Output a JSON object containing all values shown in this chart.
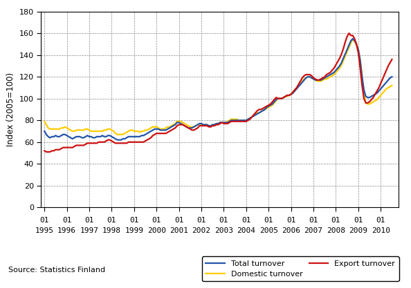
{
  "title": "",
  "ylabel": "Index (2005=100)",
  "source_text": "Source: Statistics Finland",
  "ylim": [
    0,
    180
  ],
  "yticks": [
    0,
    20,
    40,
    60,
    80,
    100,
    120,
    140,
    160,
    180
  ],
  "start_year": 1995,
  "start_month": 1,
  "end_year": 2010,
  "end_month": 7,
  "total_color": "#2255aa",
  "domestic_color": "#ffcc00",
  "export_color": "#cc1111",
  "line_width": 1.6,
  "legend_labels": [
    "Total turnover",
    "Domestic turnover",
    "Export turnover"
  ],
  "total_turnover": [
    70,
    67,
    65,
    64,
    65,
    65,
    66,
    65,
    65,
    66,
    67,
    67,
    66,
    65,
    64,
    63,
    64,
    65,
    65,
    65,
    64,
    64,
    65,
    66,
    65,
    65,
    64,
    64,
    65,
    65,
    65,
    66,
    65,
    65,
    66,
    66,
    65,
    64,
    63,
    62,
    62,
    62,
    63,
    63,
    64,
    65,
    65,
    65,
    65,
    65,
    65,
    65,
    66,
    66,
    67,
    68,
    69,
    70,
    71,
    72,
    72,
    72,
    71,
    71,
    71,
    71,
    72,
    73,
    74,
    75,
    76,
    78,
    78,
    77,
    76,
    75,
    74,
    73,
    73,
    73,
    74,
    75,
    76,
    77,
    77,
    76,
    76,
    76,
    75,
    75,
    76,
    76,
    77,
    77,
    78,
    78,
    78,
    78,
    78,
    79,
    80,
    80,
    80,
    80,
    80,
    80,
    80,
    80,
    80,
    81,
    82,
    83,
    84,
    85,
    86,
    87,
    88,
    89,
    90,
    92,
    93,
    94,
    95,
    97,
    99,
    100,
    100,
    100,
    101,
    102,
    103,
    103,
    104,
    105,
    107,
    109,
    111,
    113,
    115,
    117,
    119,
    120,
    120,
    119,
    118,
    117,
    117,
    117,
    117,
    118,
    119,
    120,
    121,
    122,
    123,
    124,
    126,
    128,
    130,
    133,
    137,
    141,
    145,
    149,
    153,
    155,
    153,
    150,
    145,
    135,
    120,
    108,
    102,
    101,
    101,
    102,
    103,
    104,
    105,
    107,
    109,
    111,
    113,
    115,
    117,
    119,
    120
  ],
  "domestic_turnover": [
    79,
    76,
    73,
    72,
    72,
    72,
    72,
    72,
    72,
    73,
    73,
    74,
    73,
    72,
    71,
    70,
    70,
    71,
    71,
    71,
    71,
    71,
    72,
    72,
    71,
    70,
    70,
    70,
    70,
    70,
    70,
    70,
    71,
    71,
    72,
    72,
    71,
    70,
    68,
    67,
    67,
    67,
    67,
    68,
    69,
    70,
    71,
    71,
    70,
    70,
    70,
    69,
    70,
    70,
    71,
    71,
    72,
    73,
    74,
    74,
    74,
    73,
    72,
    72,
    72,
    73,
    74,
    74,
    75,
    76,
    77,
    79,
    79,
    79,
    78,
    77,
    76,
    75,
    74,
    74,
    74,
    75,
    76,
    77,
    76,
    76,
    76,
    76,
    75,
    75,
    76,
    76,
    77,
    77,
    78,
    78,
    78,
    78,
    79,
    80,
    81,
    81,
    81,
    81,
    80,
    80,
    80,
    80,
    80,
    81,
    82,
    83,
    85,
    86,
    87,
    87,
    88,
    89,
    90,
    91,
    92,
    93,
    94,
    96,
    98,
    100,
    100,
    100,
    101,
    102,
    102,
    103,
    104,
    106,
    108,
    110,
    112,
    114,
    116,
    118,
    119,
    120,
    120,
    119,
    118,
    117,
    116,
    116,
    116,
    117,
    118,
    118,
    119,
    120,
    121,
    122,
    124,
    126,
    128,
    131,
    135,
    139,
    143,
    147,
    151,
    154,
    153,
    149,
    145,
    136,
    121,
    105,
    96,
    95,
    95,
    96,
    97,
    98,
    99,
    101,
    103,
    105,
    107,
    109,
    110,
    111,
    112
  ],
  "export_turnover": [
    52,
    51,
    51,
    51,
    52,
    52,
    53,
    53,
    53,
    54,
    55,
    55,
    55,
    55,
    55,
    55,
    56,
    57,
    57,
    57,
    57,
    57,
    58,
    59,
    59,
    59,
    59,
    59,
    59,
    60,
    60,
    60,
    60,
    61,
    62,
    62,
    61,
    60,
    59,
    59,
    59,
    59,
    59,
    59,
    59,
    60,
    60,
    60,
    60,
    60,
    60,
    60,
    60,
    60,
    61,
    62,
    63,
    64,
    66,
    67,
    68,
    68,
    68,
    68,
    68,
    68,
    69,
    70,
    71,
    72,
    73,
    75,
    76,
    76,
    76,
    75,
    74,
    73,
    72,
    71,
    71,
    72,
    73,
    75,
    75,
    75,
    75,
    75,
    74,
    74,
    75,
    75,
    76,
    76,
    77,
    78,
    77,
    77,
    77,
    78,
    79,
    79,
    79,
    79,
    79,
    79,
    79,
    79,
    79,
    80,
    81,
    83,
    85,
    87,
    89,
    90,
    90,
    91,
    92,
    93,
    94,
    95,
    97,
    99,
    101,
    100,
    100,
    100,
    101,
    102,
    103,
    103,
    104,
    106,
    108,
    110,
    113,
    116,
    119,
    121,
    122,
    122,
    122,
    121,
    119,
    118,
    117,
    117,
    118,
    119,
    120,
    122,
    123,
    124,
    126,
    128,
    131,
    134,
    137,
    141,
    146,
    152,
    157,
    160,
    158,
    158,
    155,
    150,
    142,
    128,
    112,
    100,
    96,
    96,
    97,
    99,
    101,
    104,
    107,
    110,
    114,
    118,
    122,
    126,
    130,
    133,
    136
  ]
}
